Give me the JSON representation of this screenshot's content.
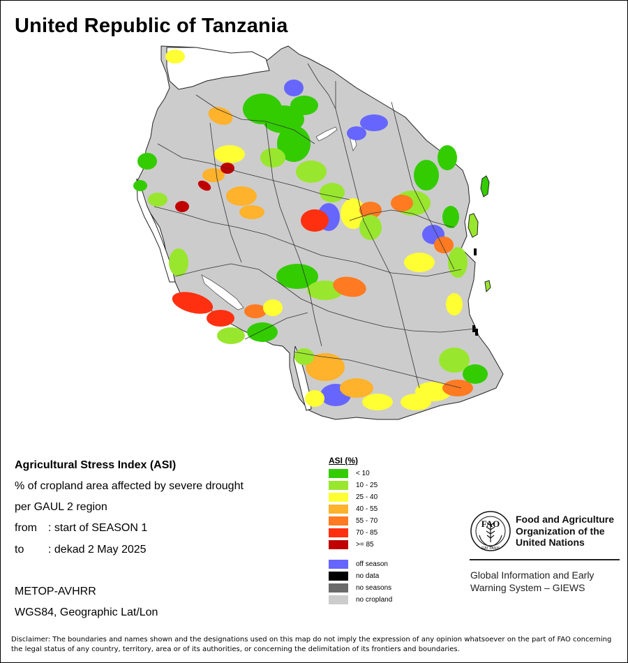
{
  "title": "United Republic of Tanzania",
  "info": {
    "heading": "Agricultural Stress Index (ASI)",
    "line1": "% of cropland area affected by severe drought",
    "line2": "per GAUL 2 region",
    "from_label": "from",
    "from_value": ": start of SEASON 1",
    "to_label": "to",
    "to_value": ": dekad 2 May 2025",
    "sensor": "METOP-AVHRR",
    "projection": "WGS84, Geographic Lat/Lon"
  },
  "legend": {
    "title": "ASI (%)",
    "classes": [
      {
        "label": "< 10",
        "color": "#33cc00"
      },
      {
        "label": "10 - 25",
        "color": "#99e62e"
      },
      {
        "label": "25 - 40",
        "color": "#ffff33"
      },
      {
        "label": "40 - 55",
        "color": "#ffb22b"
      },
      {
        "label": "55 - 70",
        "color": "#ff7a21"
      },
      {
        "label": "70 - 85",
        "color": "#ff3010"
      },
      {
        "label": ">= 85",
        "color": "#c00000"
      }
    ],
    "other": [
      {
        "label": "off season",
        "color": "#6666ff"
      },
      {
        "label": "no data",
        "color": "#000000"
      },
      {
        "label": "no seasons",
        "color": "#6b6b6b"
      },
      {
        "label": "no cropland",
        "color": "#cccccc"
      }
    ]
  },
  "organization": {
    "logo_text": "FAO",
    "logo_motto": "FIAT PANIS",
    "name_line1": "Food and Agriculture",
    "name_line2": "Organization of the",
    "name_line3": "United Nations",
    "system_line1": "Global Information and Early",
    "system_line2": "Warning System – GIEWS"
  },
  "disclaimer": "Disclaimer: The boundaries and names shown and the designations used on this map do not imply the expression of any opinion whatsoever on the part of FAO concerning the legal status of any country, territory, area or of its authorities, or concerning the delimitation of its frontiers and boundaries.",
  "colors": {
    "lt10": "#33cc00",
    "c10_25": "#99e62e",
    "c25_40": "#ffff33",
    "c40_55": "#ffb22b",
    "c55_70": "#ff7a21",
    "c70_85": "#ff3010",
    "ge85": "#c00000",
    "off_season": "#6666ff",
    "no_data": "#000000",
    "no_seasons": "#6b6b6b",
    "no_cropland": "#cccccc",
    "boundary": "#222222"
  }
}
